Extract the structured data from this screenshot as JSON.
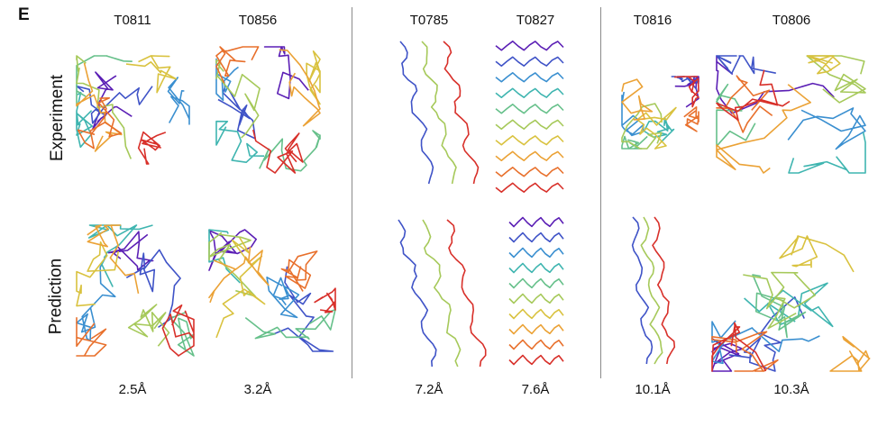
{
  "panel_letter": "E",
  "row_labels": {
    "experiment": "Experiment",
    "prediction": "Prediction"
  },
  "targets": [
    {
      "id": "T0811",
      "rmsd": "2.5Å"
    },
    {
      "id": "T0856",
      "rmsd": "3.2Å"
    },
    {
      "id": "T0785",
      "rmsd": "7.2Å"
    },
    {
      "id": "T0827",
      "rmsd": "7.6Å"
    },
    {
      "id": "T0816",
      "rmsd": "10.1Å"
    },
    {
      "id": "T0806",
      "rmsd": "10.3Å"
    }
  ],
  "colors": {
    "rainbow": [
      "#5b1fb5",
      "#3f53c7",
      "#3a8fd0",
      "#3fb5b0",
      "#66c08a",
      "#a6c95a",
      "#d9c23f",
      "#eba236",
      "#e8702c",
      "#d8302a"
    ],
    "divider": "#8a8a8a"
  }
}
